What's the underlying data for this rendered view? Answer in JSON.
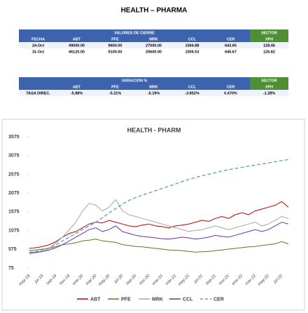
{
  "title": "HEALTH – PHARMA",
  "table_prices": {
    "group_header": "VALORES DE CIERRE",
    "sector_header": "SECTOR",
    "columns": [
      "FECHA",
      "ABT",
      "PFE",
      "MRK",
      "CCL",
      "CER",
      "XPH"
    ],
    "rows": [
      [
        "24-Oct",
        "49000.00",
        "9600.00",
        "27000.00",
        "1566.88",
        "643.65",
        "128.46"
      ],
      [
        "31-Oct",
        "46120.00",
        "9100.00",
        "25600.00",
        "1506.53",
        "646.67",
        "126.82"
      ]
    ]
  },
  "table_changes": {
    "group_header": "VARIACION %",
    "sector_header": "SECTOR",
    "columns": [
      "ABT",
      "PFE",
      "MRK",
      "CCL",
      "CER",
      "XPH"
    ],
    "rows": [
      [
        "TASA DIREC.",
        "-5.88%",
        "-5.21%",
        "-5.19%",
        "-3.852%",
        "0.470%",
        "-1.28%"
      ]
    ]
  },
  "chart_data": {
    "type": "line",
    "title": "HEALTH - PHARM",
    "categories": [
      "may-19",
      null,
      "jul-19",
      null,
      "sep-19",
      null,
      "nov-19",
      null,
      "ene-20",
      null,
      "mar-20",
      null,
      "may-20",
      null,
      "jul-20",
      null,
      "sep-20",
      null,
      "nov-20",
      null,
      "ene-21",
      null,
      "mar-21",
      null,
      "may-21",
      null,
      "jul-21",
      null,
      "sep-21",
      null,
      "nov-21",
      null,
      "ene-22",
      null,
      "mar-22",
      null,
      "may-22",
      null,
      "jul-22",
      null
    ],
    "series": [
      {
        "name": "ABT",
        "color": "#c00000",
        "dashed": false,
        "values": [
          600,
          620,
          650,
          700,
          780,
          900,
          1000,
          1050,
          1150,
          1250,
          1300,
          1280,
          1350,
          1300,
          1250,
          1200,
          1180,
          1220,
          1250,
          1200,
          1180,
          1150,
          1200,
          1220,
          1250,
          1300,
          1350,
          1320,
          1400,
          1450,
          1400,
          1500,
          1550,
          1500,
          1600,
          1650,
          1700,
          1750,
          1850,
          1700
        ]
      },
      {
        "name": "PFE",
        "color": "#4f7f1f",
        "dashed": false,
        "values": [
          550,
          560,
          580,
          600,
          650,
          700,
          720,
          750,
          800,
          820,
          850,
          800,
          780,
          760,
          700,
          680,
          650,
          640,
          620,
          600,
          580,
          560,
          550,
          540,
          520,
          500,
          510,
          520,
          540,
          560,
          580,
          600,
          620,
          640,
          650,
          680,
          700,
          720,
          780,
          720
        ]
      },
      {
        "name": "MRK",
        "color": "#a5a5a5",
        "dashed": false,
        "values": [
          450,
          480,
          520,
          600,
          750,
          900,
          1100,
          1300,
          1600,
          1800,
          1750,
          1600,
          1700,
          1900,
          1600,
          1500,
          1450,
          1400,
          1350,
          1300,
          1250,
          1200,
          1150,
          1100,
          1050,
          1080,
          1100,
          1150,
          1200,
          1150,
          1100,
          1150,
          1200,
          1250,
          1300,
          1200,
          1250,
          1350,
          1450,
          1400
        ]
      },
      {
        "name": "CCL",
        "color": "#7030a0",
        "dashed": false,
        "values": [
          480,
          500,
          520,
          560,
          620,
          700,
          800,
          900,
          1000,
          1100,
          1150,
          1050,
          1100,
          1200,
          1050,
          1000,
          950,
          920,
          900,
          880,
          860,
          850,
          870,
          900,
          880,
          850,
          870,
          900,
          950,
          920,
          900,
          950,
          1000,
          1050,
          1100,
          1050,
          1100,
          1200,
          1300,
          1250
        ]
      },
      {
        "name": "CER",
        "color": "#5b9bd5",
        "dashed": true,
        "values": [
          500,
          520,
          560,
          620,
          700,
          800,
          900,
          1000,
          1100,
          1200,
          1300,
          1420,
          1540,
          1660,
          1780,
          1880,
          1960,
          2020,
          2080,
          2140,
          2200,
          2260,
          2320,
          2380,
          2440,
          2490,
          2540,
          2580,
          2620,
          2660,
          2700,
          2730,
          2760,
          2790,
          2820,
          2850,
          2880,
          2910,
          2940,
          2970
        ]
      }
    ],
    "ylim": [
      75,
      3575
    ],
    "yticks": [
      75,
      575,
      1075,
      1575,
      2075,
      2575,
      3075,
      3575
    ],
    "grid": false,
    "legend": "bottom"
  }
}
